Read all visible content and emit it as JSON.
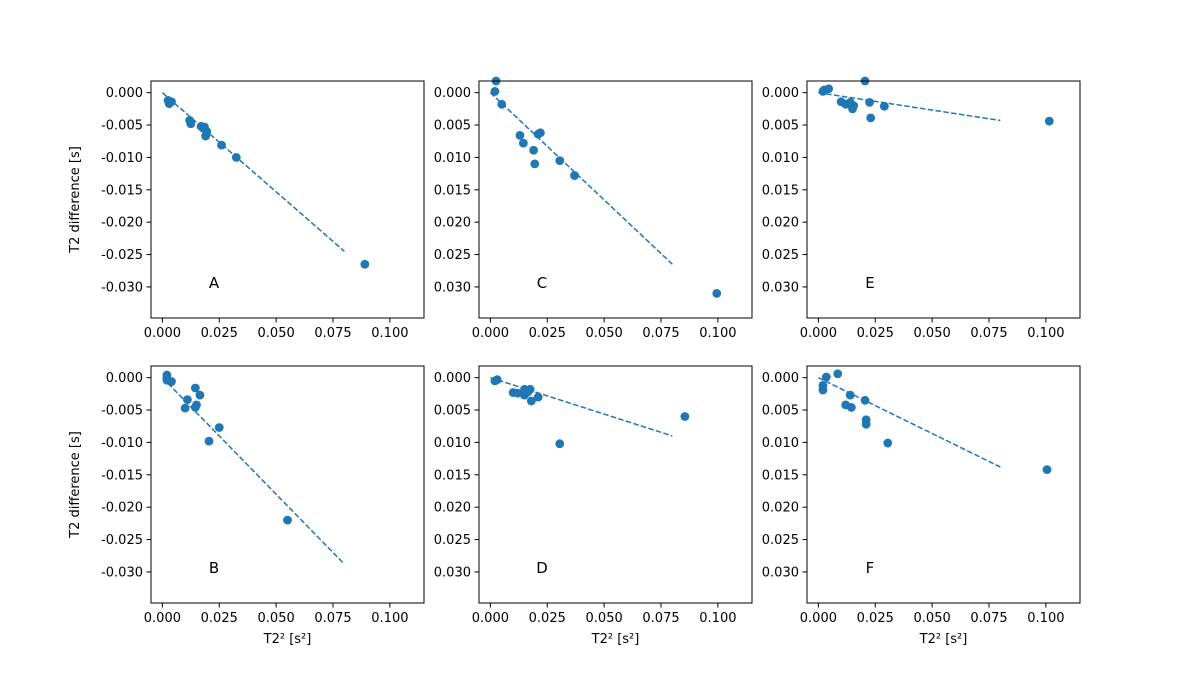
{
  "chart_data": {
    "type": "scatter",
    "grid": false,
    "shared_ylim": [
      -0.0348,
      0.0018
    ],
    "series_color": "#1f77b4",
    "panels": [
      {
        "label": "A",
        "ylabel": "T2 difference [s]",
        "xlabel": "",
        "xlim": [
          -0.005,
          0.115
        ],
        "xticks": [
          "0.000",
          "0.025",
          "0.050",
          "0.075",
          "0.100"
        ],
        "yticks": [
          "0.000",
          "-0.005",
          "-0.010",
          "-0.015",
          "-0.020",
          "-0.025",
          "-0.030"
        ],
        "points": [
          [
            0.0025,
            -0.0012
          ],
          [
            0.003,
            -0.0017
          ],
          [
            0.0035,
            -0.0015
          ],
          [
            0.004,
            -0.0014
          ],
          [
            0.012,
            -0.0043
          ],
          [
            0.0125,
            -0.0048
          ],
          [
            0.017,
            -0.0052
          ],
          [
            0.018,
            -0.0055
          ],
          [
            0.0185,
            -0.0053
          ],
          [
            0.019,
            -0.0067
          ],
          [
            0.0195,
            -0.006
          ],
          [
            0.026,
            -0.0081
          ],
          [
            0.0325,
            -0.01
          ],
          [
            0.089,
            -0.0265
          ]
        ],
        "fit_line": {
          "x": [
            0.0,
            0.08
          ],
          "y": [
            0.0,
            -0.0245
          ]
        }
      },
      {
        "label": "C",
        "ylabel": "",
        "xlabel": "",
        "xlim": [
          -0.005,
          0.115
        ],
        "xticks": [
          "0.000",
          "0.025",
          "0.050",
          "0.075",
          "0.100"
        ],
        "yticks": [
          "0.000",
          "0.005",
          "0.010",
          "0.015",
          "0.020",
          "0.025",
          "0.030"
        ],
        "points": [
          [
            0.0025,
            0.0018
          ],
          [
            0.002,
            0.0002
          ],
          [
            0.005,
            -0.0018
          ],
          [
            0.013,
            -0.0066
          ],
          [
            0.0145,
            -0.0078
          ],
          [
            0.019,
            -0.0089
          ],
          [
            0.0195,
            -0.011
          ],
          [
            0.021,
            -0.0064
          ],
          [
            0.022,
            -0.0062
          ],
          [
            0.0305,
            -0.0105
          ],
          [
            0.037,
            -0.0128
          ],
          [
            0.0995,
            -0.031
          ]
        ],
        "fit_line": {
          "x": [
            0.0,
            0.08
          ],
          "y": [
            0.0,
            -0.0265
          ]
        }
      },
      {
        "label": "E",
        "ylabel": "",
        "xlabel": "",
        "xlim": [
          -0.005,
          0.115
        ],
        "xticks": [
          "0.000",
          "0.025",
          "0.050",
          "0.075",
          "0.100"
        ],
        "yticks": [
          "0.000",
          "0.005",
          "0.010",
          "0.015",
          "0.020",
          "0.025",
          "0.030"
        ],
        "points": [
          [
            0.002,
            0.0002
          ],
          [
            0.0025,
            0.0004
          ],
          [
            0.0045,
            0.0006
          ],
          [
            0.01,
            -0.0014
          ],
          [
            0.012,
            -0.0018
          ],
          [
            0.014,
            -0.0015
          ],
          [
            0.015,
            -0.0025
          ],
          [
            0.0155,
            -0.002
          ],
          [
            0.0205,
            0.0018
          ],
          [
            0.0225,
            -0.0015
          ],
          [
            0.023,
            -0.0039
          ],
          [
            0.029,
            -0.0021
          ],
          [
            0.1015,
            -0.0044
          ]
        ],
        "fit_line": {
          "x": [
            0.0,
            0.08
          ],
          "y": [
            0.0,
            -0.0043
          ]
        }
      },
      {
        "label": "B",
        "ylabel": "T2 difference [s]",
        "xlabel": "T2² [s²]",
        "xlim": [
          -0.005,
          0.115
        ],
        "xticks": [
          "0.000",
          "0.025",
          "0.050",
          "0.075",
          "0.100"
        ],
        "yticks": [
          "0.000",
          "-0.005",
          "-0.010",
          "-0.015",
          "-0.020",
          "-0.025",
          "-0.030"
        ],
        "points": [
          [
            0.002,
            0.0004
          ],
          [
            0.002,
            -0.0004
          ],
          [
            0.004,
            -0.0006
          ],
          [
            0.01,
            -0.0047
          ],
          [
            0.011,
            -0.0034
          ],
          [
            0.0145,
            -0.0016
          ],
          [
            0.0145,
            -0.0046
          ],
          [
            0.015,
            -0.0042
          ],
          [
            0.0165,
            -0.0027
          ],
          [
            0.0205,
            -0.0098
          ],
          [
            0.025,
            -0.0077
          ],
          [
            0.055,
            -0.022
          ]
        ],
        "fit_line": {
          "x": [
            0.0,
            0.08
          ],
          "y": [
            0.0,
            -0.0288
          ]
        }
      },
      {
        "label": "D",
        "ylabel": "",
        "xlabel": "T2² [s²]",
        "xlim": [
          -0.005,
          0.115
        ],
        "xticks": [
          "0.000",
          "0.025",
          "0.050",
          "0.075",
          "0.100"
        ],
        "yticks": [
          "0.000",
          "0.005",
          "0.010",
          "0.015",
          "0.020",
          "0.025",
          "0.030"
        ],
        "points": [
          [
            0.002,
            -0.0005
          ],
          [
            0.003,
            -0.0003
          ],
          [
            0.01,
            -0.0023
          ],
          [
            0.012,
            -0.0024
          ],
          [
            0.015,
            -0.0018
          ],
          [
            0.015,
            -0.0027
          ],
          [
            0.0165,
            -0.0022
          ],
          [
            0.0175,
            -0.0018
          ],
          [
            0.018,
            -0.0036
          ],
          [
            0.021,
            -0.003
          ],
          [
            0.0305,
            -0.0102
          ],
          [
            0.0855,
            -0.006
          ]
        ],
        "fit_line": {
          "x": [
            0.0,
            0.08
          ],
          "y": [
            0.0,
            -0.009
          ]
        }
      },
      {
        "label": "F",
        "ylabel": "",
        "xlabel": "T2² [s²]",
        "xlim": [
          -0.005,
          0.115
        ],
        "xticks": [
          "0.000",
          "0.025",
          "0.050",
          "0.075",
          "0.100"
        ],
        "yticks": [
          "0.000",
          "0.005",
          "0.010",
          "0.015",
          "0.020",
          "0.025",
          "0.030"
        ],
        "points": [
          [
            0.002,
            -0.0012
          ],
          [
            0.002,
            -0.0019
          ],
          [
            0.0035,
            0.0001
          ],
          [
            0.0085,
            0.0006
          ],
          [
            0.012,
            -0.0042
          ],
          [
            0.014,
            -0.0027
          ],
          [
            0.0145,
            -0.0046
          ],
          [
            0.0205,
            -0.0035
          ],
          [
            0.021,
            -0.0065
          ],
          [
            0.021,
            -0.0072
          ],
          [
            0.0305,
            -0.0101
          ],
          [
            0.1005,
            -0.0142
          ]
        ],
        "fit_line": {
          "x": [
            0.0,
            0.08
          ],
          "y": [
            0.0,
            -0.0138
          ]
        }
      }
    ]
  }
}
